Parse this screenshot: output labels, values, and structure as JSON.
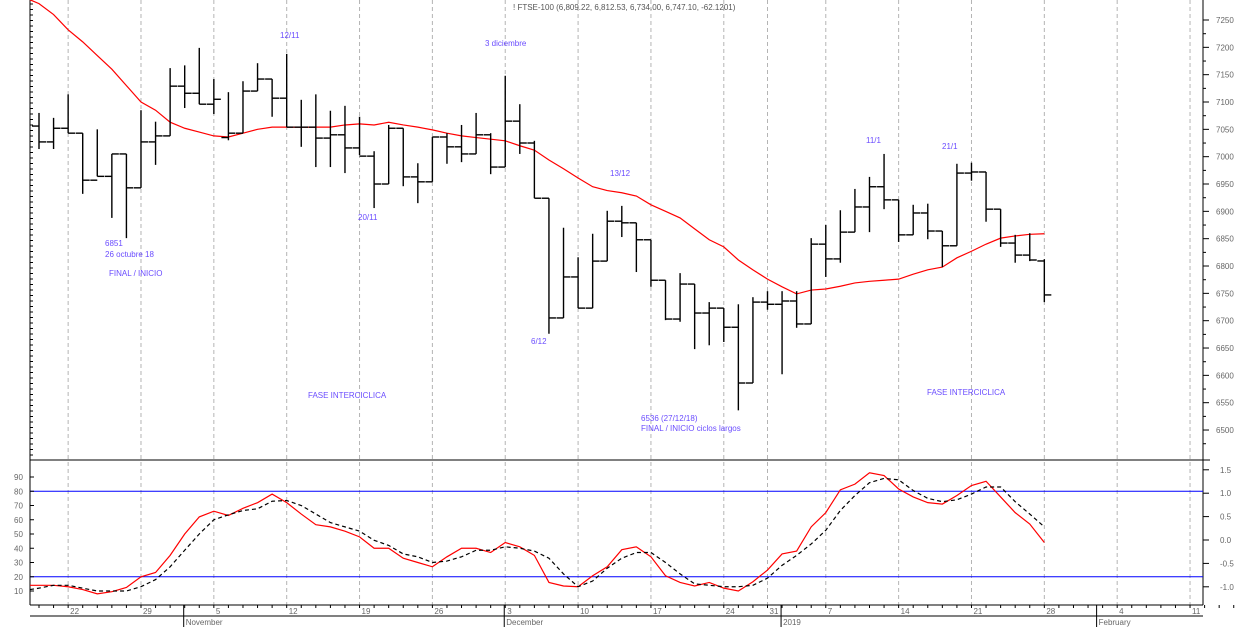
{
  "chart_data": [
    {
      "type": "ohlc",
      "title": "! FTSE-100 (6,809.22, 6,812.53, 6,734.00, 6,747.10, -62.1201)",
      "ylim": [
        6450,
        7290
      ],
      "yticks": [
        7250,
        7200,
        7150,
        7100,
        7050,
        7000,
        6950,
        6900,
        6850,
        6800,
        6750,
        6700,
        6650,
        6600,
        6550,
        6500
      ],
      "colors": {
        "bars": "#000000",
        "moving_average": "#ff0000",
        "annotations": "#6a4cff",
        "grid": "#b4b4b4"
      },
      "bars_ohlc": [
        [
          7056,
          7080,
          7014,
          7027
        ],
        [
          7027,
          7071,
          7014,
          7052
        ],
        [
          7052,
          7114,
          7043,
          7043
        ],
        [
          7043,
          7043,
          6932,
          6957
        ],
        [
          6957,
          7050,
          6964,
          6964
        ],
        [
          6964,
          7005,
          6888,
          7005
        ],
        [
          7005,
          7005,
          6851,
          6943
        ],
        [
          6943,
          7085,
          6943,
          7027
        ],
        [
          7027,
          7064,
          6985,
          7038
        ],
        [
          7038,
          7162,
          7038,
          7129
        ],
        [
          7129,
          7167,
          7089,
          7116
        ],
        [
          7116,
          7199,
          7096,
          7096
        ],
        [
          7096,
          7142,
          7078,
          7105
        ],
        [
          7035,
          7118,
          7030,
          7043
        ],
        [
          7043,
          7138,
          7043,
          7120
        ],
        [
          7120,
          7171,
          7120,
          7142
        ],
        [
          7142,
          7142,
          7073,
          7107
        ],
        [
          7107,
          7188,
          7054,
          7054
        ],
        [
          7054,
          7104,
          7018,
          7054
        ],
        [
          7054,
          7114,
          6981,
          7034
        ],
        [
          7034,
          7084,
          6981,
          7040
        ],
        [
          7040,
          7093,
          6970,
          7016
        ],
        [
          7016,
          7073,
          7003,
          7001
        ],
        [
          7001,
          7010,
          6906,
          6950
        ],
        [
          6950,
          7058,
          6950,
          7052
        ],
        [
          7052,
          7052,
          6946,
          6963
        ],
        [
          6963,
          6988,
          6915,
          6954
        ],
        [
          6954,
          7036,
          6954,
          7036
        ],
        [
          7036,
          7043,
          6987,
          7018
        ],
        [
          7018,
          7058,
          6990,
          7005
        ],
        [
          7005,
          7080,
          7005,
          7040
        ],
        [
          7040,
          7043,
          6968,
          6981
        ],
        [
          6981,
          7148,
          6981,
          7065
        ],
        [
          7065,
          7096,
          7005,
          7025
        ],
        [
          7025,
          7029,
          6924,
          6924
        ],
        [
          6924,
          6924,
          6676,
          6705
        ],
        [
          6705,
          6870,
          6705,
          6780
        ],
        [
          6780,
          6816,
          6723,
          6723
        ],
        [
          6723,
          6859,
          6723,
          6809
        ],
        [
          6809,
          6901,
          6809,
          6882
        ],
        [
          6882,
          6910,
          6853,
          6879
        ],
        [
          6879,
          6879,
          6789,
          6848
        ],
        [
          6848,
          6848,
          6762,
          6774
        ],
        [
          6774,
          6774,
          6701,
          6703
        ],
        [
          6703,
          6787,
          6698,
          6767
        ],
        [
          6767,
          6767,
          6648,
          6714
        ],
        [
          6714,
          6734,
          6655,
          6723
        ],
        [
          6723,
          6723,
          6661,
          6688
        ],
        [
          6688,
          6730,
          6536,
          6586
        ],
        [
          6586,
          6743,
          6586,
          6734
        ],
        [
          6734,
          6754,
          6720,
          6730
        ],
        [
          6730,
          6754,
          6602,
          6736
        ],
        [
          6736,
          6754,
          6687,
          6694
        ],
        [
          6694,
          6851,
          6694,
          6840
        ],
        [
          6840,
          6875,
          6780,
          6813
        ],
        [
          6813,
          6902,
          6806,
          6862
        ],
        [
          6862,
          6941,
          6862,
          6908
        ],
        [
          6908,
          6963,
          6862,
          6945
        ],
        [
          6945,
          7005,
          6904,
          6921
        ],
        [
          6921,
          6921,
          6844,
          6857
        ],
        [
          6857,
          6912,
          6857,
          6897
        ],
        [
          6897,
          6914,
          6849,
          6864
        ],
        [
          6864,
          6864,
          6798,
          6837
        ],
        [
          6837,
          6987,
          6837,
          6970
        ],
        [
          6970,
          6989,
          6956,
          6972
        ],
        [
          6972,
          6972,
          6881,
          6904
        ],
        [
          6904,
          6904,
          6835,
          6842
        ],
        [
          6842,
          6857,
          6806,
          6820
        ],
        [
          6820,
          6860,
          6809,
          6811
        ],
        [
          6809.22,
          6812.53,
          6734.0,
          6747.1
        ]
      ],
      "moving_average": [
        7280,
        7260,
        7232,
        7210,
        7185,
        7160,
        7130,
        7100,
        7085,
        7063,
        7052,
        7045,
        7038,
        7036,
        7043,
        7050,
        7054,
        7054,
        7054,
        7054,
        7054,
        7058,
        7060,
        7058,
        7063,
        7058,
        7054,
        7049,
        7043,
        7038,
        7035,
        7032,
        7029,
        7020,
        7012,
        6994,
        6978,
        6961,
        6945,
        6938,
        6934,
        6928,
        6912,
        6900,
        6888,
        6868,
        6848,
        6835,
        6811,
        6793,
        6776,
        6762,
        6749,
        6756,
        6758,
        6763,
        6769,
        6772,
        6774,
        6776,
        6785,
        6793,
        6798,
        6815,
        6827,
        6840,
        6851,
        6855,
        6858,
        6859
      ],
      "annotations": [
        "12/11",
        "3 diciembre",
        "13/12",
        "11/1",
        "21/1",
        "6851",
        "26 octubre 18",
        "FINAL / INICIO",
        "20/11",
        "6/12",
        "FASE INTERCICLICA",
        "FASE INTERCICLICA",
        "6536 (27/12/18)",
        "FINAL / INICIO ciclos largos"
      ]
    },
    {
      "type": "line",
      "name": "stochastic",
      "ylim": [
        0,
        100
      ],
      "yticks_left": [
        90,
        80,
        70,
        60,
        50,
        40,
        30,
        20,
        10
      ],
      "yticks_right": [
        "1.5",
        "1.0",
        "0.5",
        "0.0",
        "-0.5",
        "-1.0"
      ],
      "reference_lines": [
        80,
        20
      ],
      "colors": {
        "k": "#ff0000",
        "d": "#000000",
        "reference": "#0000ff"
      },
      "series": [
        {
          "name": "%K",
          "style": "solid",
          "values": [
            14,
            14,
            13,
            11,
            8,
            9.5,
            12.5,
            20,
            23,
            35,
            50,
            62,
            66,
            63,
            68,
            72,
            78,
            72,
            64,
            56.5,
            55,
            52,
            48,
            40,
            40,
            33,
            30,
            27,
            34,
            40,
            40,
            37,
            44,
            41,
            35,
            16,
            13.5,
            13,
            20.7,
            27,
            39,
            41,
            34,
            20.7,
            16,
            13.5,
            16,
            12,
            10,
            16.5,
            24.7,
            36,
            38,
            55,
            65,
            81,
            85,
            93,
            91,
            81.6,
            76,
            72,
            71,
            77,
            84,
            87,
            76,
            65,
            57,
            44
          ]
        },
        {
          "name": "%D",
          "style": "dashed",
          "values": [
            12,
            14,
            14,
            12,
            10,
            10,
            10,
            13,
            18,
            27,
            38.6,
            50,
            60,
            63.5,
            66.5,
            67.7,
            73,
            73.5,
            70,
            64,
            58,
            55,
            52,
            45.6,
            42,
            36,
            34,
            30,
            31,
            34,
            38.6,
            38.6,
            41,
            40,
            38,
            33,
            22,
            13,
            17,
            26,
            33,
            37,
            37,
            30,
            22,
            15,
            14,
            13,
            13,
            14,
            19,
            28,
            35,
            43,
            52.6,
            66.5,
            77,
            86,
            89,
            88,
            80.5,
            75,
            72.7,
            74,
            78,
            83,
            83,
            72.7,
            64,
            55
          ]
        }
      ]
    }
  ],
  "x_axis": {
    "day_labels": [
      "22",
      "29",
      "5",
      "12",
      "19",
      "26",
      "3",
      "10",
      "17",
      "24",
      "31",
      "7",
      "14",
      "21",
      "28",
      "4",
      "11"
    ],
    "month_labels": [
      "November",
      "December",
      "2019",
      "February"
    ]
  }
}
